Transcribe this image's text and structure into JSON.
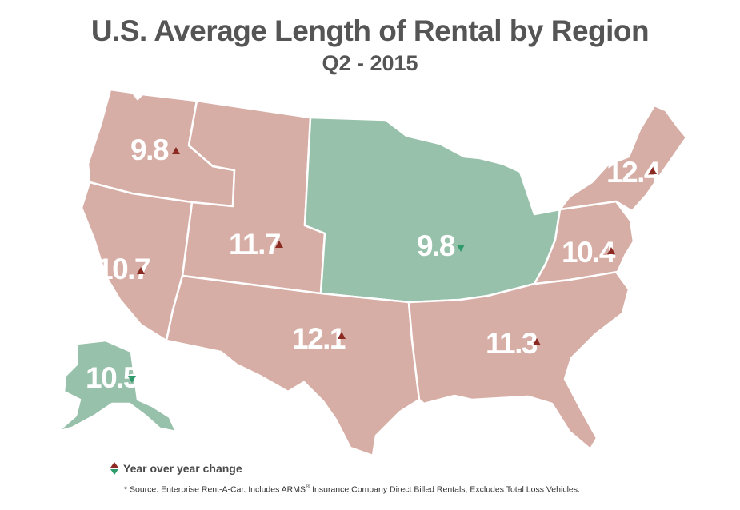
{
  "title": "U.S. Average Length of Rental by Region",
  "subtitle": "Q2 - 2015",
  "colors": {
    "increase_fill": "#d7aea6",
    "decrease_fill": "#97c1aa",
    "up_arrow": "#8b2a22",
    "down_arrow": "#2f9a6c",
    "value_text": "#ffffff"
  },
  "regions": [
    {
      "id": "northwest",
      "value": "9.8",
      "change": "up"
    },
    {
      "id": "mountain",
      "value": "11.7",
      "change": "up"
    },
    {
      "id": "california",
      "value": "10.7",
      "change": "up"
    },
    {
      "id": "midwest",
      "value": "9.8",
      "change": "down"
    },
    {
      "id": "south-central",
      "value": "12.1",
      "change": "up"
    },
    {
      "id": "southeast",
      "value": "11.3",
      "change": "up"
    },
    {
      "id": "mid-atlantic",
      "value": "10.4",
      "change": "up"
    },
    {
      "id": "northeast",
      "value": "12.4",
      "change": "up"
    },
    {
      "id": "alaska",
      "value": "10.5",
      "change": "down"
    }
  ],
  "legend": {
    "label": "Year over year change",
    "icons": [
      "up-triangle-icon",
      "down-triangle-icon"
    ]
  },
  "source": {
    "prefix": "* Source: Enterprise Rent-A-Car. Includes ARMS",
    "mark": "®",
    "suffix": " Insurance Company Direct Billed Rentals; Excludes Total Loss Vehicles."
  }
}
